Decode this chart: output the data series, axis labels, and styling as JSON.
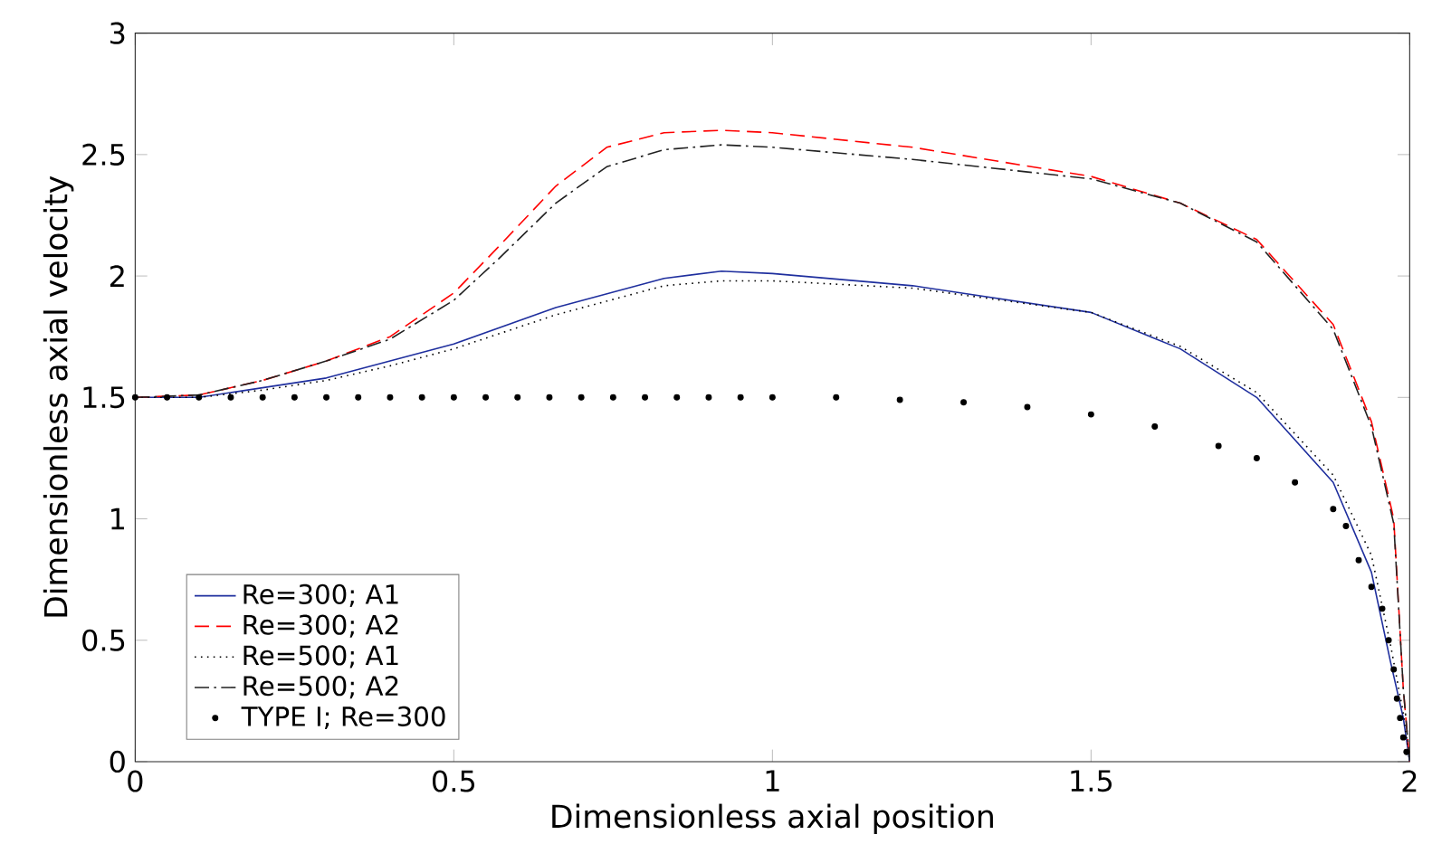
{
  "chart_data": {
    "type": "line",
    "xlabel": "Dimensionless axial position",
    "ylabel": "Dimensionless axial velocity",
    "xlim": [
      0,
      2
    ],
    "ylim": [
      0,
      3
    ],
    "xticks": [
      0,
      0.5,
      1,
      1.5,
      2
    ],
    "yticks": [
      0,
      0.5,
      1,
      1.5,
      2,
      2.5,
      3
    ],
    "grid": false,
    "legend": "bottom left",
    "series": [
      {
        "name": "Re=300; A1",
        "color": "#1f2f9e",
        "line_style": "solid",
        "marker": "none",
        "x": [
          0,
          0.1,
          0.2,
          0.3,
          0.4,
          0.5,
          0.66,
          0.83,
          0.92,
          1.0,
          1.22,
          1.5,
          1.64,
          1.76,
          1.88,
          1.94,
          1.97,
          1.99,
          2.0
        ],
        "values": [
          1.5,
          1.5,
          1.54,
          1.58,
          1.65,
          1.72,
          1.87,
          1.99,
          2.02,
          2.01,
          1.96,
          1.85,
          1.7,
          1.5,
          1.15,
          0.78,
          0.41,
          0.18,
          0
        ]
      },
      {
        "name": "Re=300; A2",
        "color": "#ff0000",
        "line_style": "dashed",
        "marker": "none",
        "x": [
          0,
          0.1,
          0.2,
          0.3,
          0.4,
          0.5,
          0.57,
          0.66,
          0.74,
          0.83,
          0.92,
          1.0,
          1.22,
          1.5,
          1.64,
          1.76,
          1.88,
          1.94,
          1.975,
          1.99,
          2.0
        ],
        "values": [
          1.5,
          1.51,
          1.57,
          1.65,
          1.75,
          1.93,
          2.12,
          2.37,
          2.53,
          2.59,
          2.6,
          2.59,
          2.53,
          2.41,
          2.3,
          2.15,
          1.8,
          1.4,
          1.0,
          0.3,
          0
        ]
      },
      {
        "name": "Re=500; A1",
        "color": "#000000",
        "line_style": "dotted",
        "marker": "none",
        "x": [
          0,
          0.1,
          0.2,
          0.3,
          0.4,
          0.5,
          0.66,
          0.83,
          0.92,
          1.0,
          1.22,
          1.5,
          1.64,
          1.76,
          1.88,
          1.94,
          1.97,
          1.99,
          2.0
        ],
        "values": [
          1.5,
          1.5,
          1.53,
          1.57,
          1.63,
          1.7,
          1.84,
          1.96,
          1.98,
          1.98,
          1.95,
          1.85,
          1.71,
          1.52,
          1.18,
          0.85,
          0.48,
          0.2,
          0
        ]
      },
      {
        "name": "Re=500; A2",
        "color": "#222222",
        "line_style": "dashdot",
        "marker": "none",
        "x": [
          0,
          0.1,
          0.2,
          0.3,
          0.4,
          0.5,
          0.57,
          0.66,
          0.74,
          0.83,
          0.92,
          1.0,
          1.22,
          1.5,
          1.64,
          1.76,
          1.88,
          1.94,
          1.975,
          1.99,
          2.0
        ],
        "values": [
          1.5,
          1.51,
          1.57,
          1.65,
          1.74,
          1.9,
          2.07,
          2.3,
          2.45,
          2.52,
          2.54,
          2.53,
          2.48,
          2.4,
          2.3,
          2.14,
          1.78,
          1.38,
          0.98,
          0.3,
          0
        ]
      },
      {
        "name": "TYPE I; Re=300",
        "type": "scatter",
        "color": "#000000",
        "marker": "circle",
        "x": [
          0,
          0.05,
          0.1,
          0.15,
          0.2,
          0.25,
          0.3,
          0.35,
          0.4,
          0.45,
          0.5,
          0.55,
          0.6,
          0.65,
          0.7,
          0.75,
          0.8,
          0.85,
          0.9,
          0.95,
          1.0,
          1.1,
          1.2,
          1.3,
          1.4,
          1.5,
          1.6,
          1.7,
          1.76,
          1.82,
          1.88,
          1.9,
          1.92,
          1.94,
          1.957,
          1.967,
          1.975,
          1.98,
          1.985,
          1.99,
          1.995
        ],
        "values": [
          1.5,
          1.5,
          1.5,
          1.5,
          1.5,
          1.5,
          1.5,
          1.5,
          1.5,
          1.5,
          1.5,
          1.5,
          1.5,
          1.5,
          1.5,
          1.5,
          1.5,
          1.5,
          1.5,
          1.5,
          1.5,
          1.5,
          1.49,
          1.48,
          1.46,
          1.43,
          1.38,
          1.3,
          1.25,
          1.15,
          1.04,
          0.97,
          0.83,
          0.72,
          0.63,
          0.5,
          0.38,
          0.26,
          0.18,
          0.1,
          0.04
        ]
      }
    ]
  }
}
